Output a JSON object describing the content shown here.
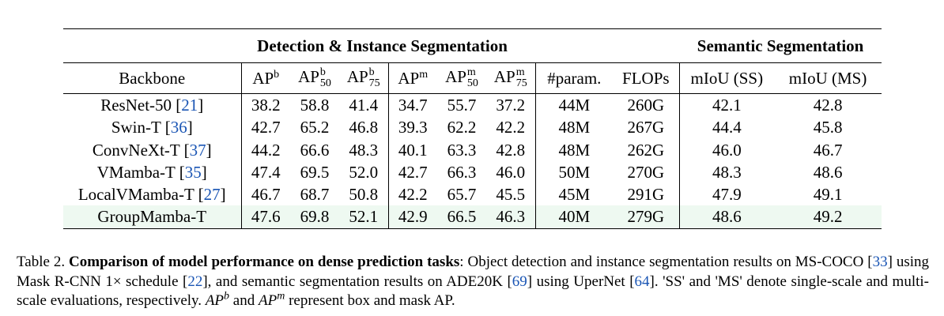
{
  "table": {
    "group_headers": {
      "detection": "Detection & Instance Segmentation",
      "semantic": "Semantic Segmentation"
    },
    "columns": {
      "backbone": "Backbone",
      "ap_b": {
        "base": "AP",
        "sup": "b"
      },
      "ap_b50": {
        "base": "AP",
        "sup": "b",
        "sub": "50"
      },
      "ap_b75": {
        "base": "AP",
        "sup": "b",
        "sub": "75"
      },
      "ap_m": {
        "base": "AP",
        "sup": "m"
      },
      "ap_m50": {
        "base": "AP",
        "sup": "m",
        "sub": "50"
      },
      "ap_m75": {
        "base": "AP",
        "sup": "m",
        "sub": "75"
      },
      "params": "#param.",
      "flops": "FLOPs",
      "miou_ss": "mIoU (SS)",
      "miou_ms": "mIoU (MS)"
    },
    "rows": [
      {
        "name": "ResNet-50",
        "cite": "21",
        "apb": "38.2",
        "apb50": "58.8",
        "apb75": "41.4",
        "apm": "34.7",
        "apm50": "55.7",
        "apm75": "37.2",
        "params": "44M",
        "flops": "260G",
        "ss": "42.1",
        "ms": "42.8"
      },
      {
        "name": "Swin-T",
        "cite": "36",
        "apb": "42.7",
        "apb50": "65.2",
        "apb75": "46.8",
        "apm": "39.3",
        "apm50": "62.2",
        "apm75": "42.2",
        "params": "48M",
        "flops": "267G",
        "ss": "44.4",
        "ms": "45.8"
      },
      {
        "name": "ConvNeXt-T",
        "cite": "37",
        "apb": "44.2",
        "apb50": "66.6",
        "apb75": "48.3",
        "apm": "40.1",
        "apm50": "63.3",
        "apm75": "42.8",
        "params": "48M",
        "flops": "262G",
        "ss": "46.0",
        "ms": "46.7"
      },
      {
        "name": "VMamba-T",
        "cite": "35",
        "apb": "47.4",
        "apb50": "69.5",
        "apb75": "52.0",
        "apm": "42.7",
        "apm50": "66.3",
        "apm75": "46.0",
        "params": "50M",
        "flops": "270G",
        "ss": "48.3",
        "ms": "48.6"
      },
      {
        "name": "LocalVMamba-T",
        "cite": "27",
        "apb": "46.7",
        "apb50": "68.7",
        "apb75": "50.8",
        "apm": "42.2",
        "apm50": "65.7",
        "apm75": "45.5",
        "params": "45M",
        "flops": "291G",
        "ss": "47.9",
        "ms": "49.1"
      },
      {
        "name": "GroupMamba-T",
        "cite": "",
        "apb": "47.6",
        "apb50": "69.8",
        "apb75": "52.1",
        "apm": "42.9",
        "apm50": "66.5",
        "apm75": "46.3",
        "params": "40M",
        "flops": "279G",
        "ss": "48.6",
        "ms": "49.2"
      }
    ],
    "highlight_color": "#eef9f1",
    "cite_color": "#1a55b4"
  },
  "caption": {
    "label": "Table 2.",
    "bold": "Comparison of model performance on dense prediction tasks",
    "t1": ": Object detection and instance segmentation results on MS-COCO ",
    "c1": "33",
    "t2": " using Mask R-CNN 1× schedule ",
    "c2": "22",
    "t3": ", and semantic segmentation results on ADE20K ",
    "c3": "69",
    "t4": " using UperNet ",
    "c4": "64",
    "t5": ". 'SS' and 'MS' denote single-scale and multi-scale evaluations, respectively. ",
    "ap_b": "AP",
    "ap_b_sup": "b",
    "t6": " and ",
    "ap_m": "AP",
    "ap_m_sup": "m",
    "t7": " represent box and mask AP."
  }
}
